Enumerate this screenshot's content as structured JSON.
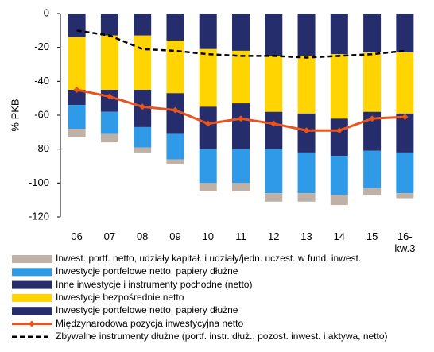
{
  "chart_data": {
    "type": "bar",
    "ylabel": "% PKB",
    "categories": [
      "06",
      "07",
      "08",
      "09",
      "10",
      "11",
      "12",
      "13",
      "14",
      "15",
      "16-kw.3"
    ],
    "ylim": [
      -120,
      0
    ],
    "yticks": [
      0,
      -20,
      -40,
      -60,
      -80,
      -100,
      -120
    ],
    "series": [
      {
        "name": "Inwest. portf. netto, udziały kapitał. i udziały/jedn. uczest. w fund. inwest.",
        "kind": "bar",
        "color": "#bfb1a6",
        "values": [
          -5,
          -5,
          -3,
          -3,
          -5,
          -5,
          -5,
          -5,
          -6,
          -4,
          -3
        ]
      },
      {
        "name": "Inwestycje portfelowe netto, papiery dłużne",
        "kind": "bar",
        "color": "#2f9be8",
        "values": [
          -14,
          -13,
          -12,
          -15,
          -20,
          -20,
          -26,
          -24,
          -23,
          -22,
          -24
        ]
      },
      {
        "name": "Inne inwestycje i instrumenty pochodne (netto)",
        "kind": "bar",
        "color": "#262d6c",
        "values": [
          -9,
          -13,
          -22,
          -24,
          -25,
          -27,
          -22,
          -23,
          -22,
          -23,
          -23
        ]
      },
      {
        "name": "Inwestycje bezpośrednie netto",
        "kind": "bar",
        "color": "#ffd400",
        "values": [
          -31,
          -32,
          -32,
          -31,
          -34,
          -31,
          -33,
          -34,
          -38,
          -35,
          -36
        ]
      },
      {
        "name": "Inwestycje portfelowe netto, papiery dłużne",
        "kind": "bar",
        "color": "#262d6c",
        "values": [
          -14,
          -13,
          -13,
          -16,
          -21,
          -22,
          -25,
          -25,
          -24,
          -23,
          -23
        ]
      },
      {
        "name": "Międzynarodowa pozycja inwestycyjna netto",
        "kind": "line",
        "color": "#e8541c",
        "marker": "diamond",
        "values": [
          -45,
          -49,
          -55,
          -57,
          -65,
          -62,
          -65,
          -69,
          -69,
          -62,
          -61
        ]
      },
      {
        "name": "Zbywalne instrumenty dłużne (portf. instr. dłuż., pozost. inwest. i aktywa, netto)",
        "kind": "line",
        "color": "#000000",
        "style": "dashed",
        "values": [
          -10,
          -13,
          -21,
          -22,
          -24,
          -25,
          -25,
          -26,
          -25,
          -24,
          -22
        ]
      }
    ]
  }
}
